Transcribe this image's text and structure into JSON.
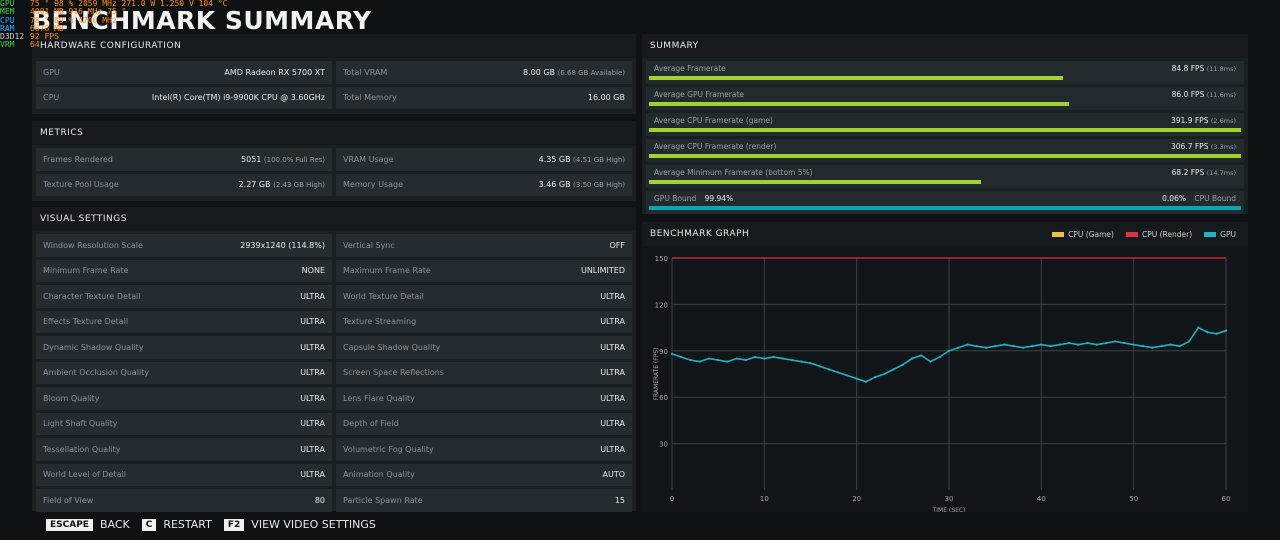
{
  "osd": [
    {
      "label": "GPU",
      "color": "#3ad13a",
      "values": "75 °    98 %   2059 MHz 271.0 W  1.250 V    104 °C"
    },
    {
      "label": "MEM",
      "color": "#3ad13a",
      "values": "4001 MB    916 MHz  75 °"
    },
    {
      "label": "CPU",
      "color": "#2aa7ff",
      "values": "78 °    89 %   4700 MHz"
    },
    {
      "label": "RAM",
      "color": "#2aa7ff",
      "values": "6678 MB"
    },
    {
      "label": "D3D12",
      "color": "#d0d0d0",
      "values": "92 FPS"
    },
    {
      "label": "VRM",
      "color": "#3ad13a",
      "values": "64"
    }
  ],
  "title": "BENCHMARK SUMMARY",
  "hardware": {
    "header": "HARDWARE CONFIGURATION",
    "rows": [
      {
        "label": "GPU",
        "value": "AMD Radeon RX 5700 XT",
        "sub": ""
      },
      {
        "label": "Total VRAM",
        "value": "8.00 GB",
        "sub": "(6.68 GB Available)"
      },
      {
        "label": "CPU",
        "value": "Intel(R) Core(TM) i9-9900K CPU @ 3.60GHz",
        "sub": ""
      },
      {
        "label": "Total Memory",
        "value": "16.00 GB",
        "sub": ""
      }
    ]
  },
  "metrics": {
    "header": "METRICS",
    "rows": [
      {
        "label": "Frames Rendered",
        "value": "5051",
        "sub": "(100.0% Full Res)"
      },
      {
        "label": "VRAM Usage",
        "value": "4.35 GB",
        "sub": "(4.51 GB High)"
      },
      {
        "label": "Texture Pool Usage",
        "value": "2.27 GB",
        "sub": "(2.43 GB High)"
      },
      {
        "label": "Memory Usage",
        "value": "3.46 GB",
        "sub": "(3.50 GB High)"
      }
    ]
  },
  "visual": {
    "header": "VISUAL SETTINGS",
    "rows": [
      {
        "label": "Window Resolution Scale",
        "value": "2939x1240 (114.8%)"
      },
      {
        "label": "Vertical Sync",
        "value": "OFF"
      },
      {
        "label": "Minimum Frame Rate",
        "value": "NONE"
      },
      {
        "label": "Maximum Frame Rate",
        "value": "UNLIMITED"
      },
      {
        "label": "Character Texture Detail",
        "value": "ULTRA"
      },
      {
        "label": "World Texture Detail",
        "value": "ULTRA"
      },
      {
        "label": "Effects Texture Detail",
        "value": "ULTRA"
      },
      {
        "label": "Texture Streaming",
        "value": "ULTRA"
      },
      {
        "label": "Dynamic Shadow Quality",
        "value": "ULTRA"
      },
      {
        "label": "Capsule Shadow Quality",
        "value": "ULTRA"
      },
      {
        "label": "Ambient Occlusion Quality",
        "value": "ULTRA"
      },
      {
        "label": "Screen Space Reflections",
        "value": "ULTRA"
      },
      {
        "label": "Bloom Quality",
        "value": "ULTRA"
      },
      {
        "label": "Lens Flare Quality",
        "value": "ULTRA"
      },
      {
        "label": "Light Shaft Quality",
        "value": "ULTRA"
      },
      {
        "label": "Depth of Field",
        "value": "ULTRA"
      },
      {
        "label": "Tessellation Quality",
        "value": "ULTRA"
      },
      {
        "label": "Volumetric Fog Quality",
        "value": "ULTRA"
      },
      {
        "label": "World Level of Detail",
        "value": "ULTRA"
      },
      {
        "label": "Animation Quality",
        "value": "AUTO"
      },
      {
        "label": "Field of View",
        "value": "80"
      },
      {
        "label": "Particle Spawn Rate",
        "value": "15"
      }
    ]
  },
  "summary": {
    "header": "SUMMARY",
    "rows": [
      {
        "label": "Average Framerate",
        "value": "84.8 FPS",
        "sub": "(11.8ms)",
        "fill": 0.7
      },
      {
        "label": "Average GPU Framerate",
        "value": "86.0 FPS",
        "sub": "(11.6ms)",
        "fill": 0.71
      },
      {
        "label": "Average CPU Framerate (game)",
        "value": "391.9 FPS",
        "sub": "(2.6ms)",
        "fill": 1.0
      },
      {
        "label": "Average CPU Framerate (render)",
        "value": "306.7 FPS",
        "sub": "(3.3ms)",
        "fill": 1.0
      },
      {
        "label": "Average Minimum Framerate (bottom 5%)",
        "value": "68.2 FPS",
        "sub": "(14.7ms)",
        "fill": 0.56
      }
    ],
    "bound": {
      "gpu_label": "GPU Bound",
      "gpu_value": "99.94%",
      "cpu_value": "0.06%",
      "cpu_label": "CPU Bound",
      "fill": 0.9994
    }
  },
  "chart_data": {
    "type": "scatter",
    "title": "BENCHMARK GRAPH",
    "xlabel": "TIME (SEC)",
    "ylabel": "FRAMERATE (FPS)",
    "xlim": [
      0,
      60
    ],
    "ylim": [
      0,
      150
    ],
    "xticks": [
      0,
      10,
      20,
      30,
      40,
      50,
      60
    ],
    "yticks": [
      30,
      60,
      90,
      120,
      150
    ],
    "grid": true,
    "legend_placement": "top-right",
    "series": [
      {
        "name": "CPU (Game)",
        "color": "#e8c24a",
        "x": [],
        "y": []
      },
      {
        "name": "CPU (Render)",
        "color": "#d9334a",
        "x": [
          0,
          60
        ],
        "y": [
          150,
          150
        ]
      },
      {
        "name": "GPU",
        "color": "#22b2c0",
        "x": [
          0,
          1,
          2,
          3,
          4,
          5,
          6,
          7,
          8,
          9,
          10,
          11,
          12,
          13,
          14,
          15,
          16,
          17,
          18,
          19,
          20,
          21,
          22,
          23,
          24,
          25,
          26,
          27,
          28,
          29,
          30,
          31,
          32,
          33,
          34,
          35,
          36,
          37,
          38,
          39,
          40,
          41,
          42,
          43,
          44,
          45,
          46,
          47,
          48,
          49,
          50,
          51,
          52,
          53,
          54,
          55,
          56,
          57,
          58,
          59,
          60
        ],
        "y": [
          88,
          86,
          84,
          83,
          85,
          84,
          83,
          85,
          84,
          86,
          85,
          86,
          85,
          84,
          83,
          82,
          80,
          78,
          76,
          74,
          72,
          70,
          73,
          75,
          78,
          81,
          85,
          87,
          83,
          86,
          90,
          92,
          94,
          93,
          92,
          93,
          94,
          93,
          92,
          93,
          94,
          93,
          94,
          95,
          94,
          95,
          94,
          95,
          96,
          95,
          94,
          93,
          92,
          93,
          94,
          93,
          96,
          105,
          102,
          101,
          103
        ]
      }
    ]
  },
  "footer": [
    {
      "key": "ESCAPE",
      "label": "BACK"
    },
    {
      "key": "C",
      "label": "RESTART"
    },
    {
      "key": "F2",
      "label": "VIEW VIDEO SETTINGS"
    }
  ]
}
